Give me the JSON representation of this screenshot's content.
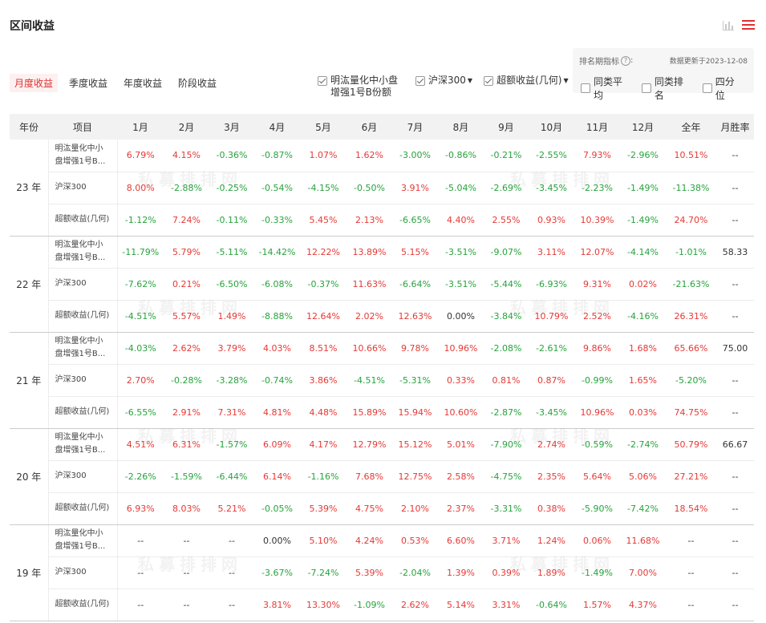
{
  "title": "区间收益",
  "icons": {
    "chart": "bar-chart-icon",
    "menu": "menu-icon"
  },
  "colors": {
    "accent": "#e03030",
    "positive": "#e53935",
    "negative": "#27a33d"
  },
  "tabs": [
    "月度收益",
    "季度收益",
    "年度收益",
    "阶段收益"
  ],
  "series": [
    {
      "label": "明汯量化中小盘增强1号B份额",
      "checked": true
    },
    {
      "label": "沪深300",
      "checked": true
    },
    {
      "label": "超额收益(几何)",
      "checked": true
    }
  ],
  "rank": {
    "label": "排名期指标",
    "help": "?",
    "date": "数据更新于2023-12-08",
    "options": [
      "同类平均",
      "同类排名",
      "四分位"
    ]
  },
  "watermark": "私募排排网",
  "table": {
    "headers": [
      "年份",
      "项目",
      "1月",
      "2月",
      "3月",
      "4月",
      "5月",
      "6月",
      "7月",
      "8月",
      "9月",
      "10月",
      "11月",
      "12月",
      "全年",
      "月胜率"
    ],
    "groups": [
      {
        "year": "23 年",
        "rows": [
          {
            "item": "明汯量化中小盘增强1号B...",
            "values": [
              "6.79%",
              "4.15%",
              "-0.36%",
              "-0.87%",
              "1.07%",
              "1.62%",
              "-3.00%",
              "-0.86%",
              "-0.21%",
              "-2.55%",
              "7.93%",
              "-2.96%",
              "10.51%",
              "--"
            ]
          },
          {
            "item": "沪深300",
            "values": [
              "8.00%",
              "-2.88%",
              "-0.25%",
              "-0.54%",
              "-4.15%",
              "-0.50%",
              "3.91%",
              "-5.04%",
              "-2.69%",
              "-3.45%",
              "-2.23%",
              "-1.49%",
              "-11.38%",
              "--"
            ]
          },
          {
            "item": "超额收益(几何)",
            "values": [
              "-1.12%",
              "7.24%",
              "-0.11%",
              "-0.33%",
              "5.45%",
              "2.13%",
              "-6.65%",
              "4.40%",
              "2.55%",
              "0.93%",
              "10.39%",
              "-1.49%",
              "24.70%",
              "--"
            ]
          }
        ]
      },
      {
        "year": "22 年",
        "rows": [
          {
            "item": "明汯量化中小盘增强1号B...",
            "values": [
              "-11.79%",
              "5.79%",
              "-5.11%",
              "-14.42%",
              "12.22%",
              "13.89%",
              "5.15%",
              "-3.51%",
              "-9.07%",
              "3.11%",
              "12.07%",
              "-4.14%",
              "-1.01%",
              "58.33"
            ]
          },
          {
            "item": "沪深300",
            "values": [
              "-7.62%",
              "0.21%",
              "-6.50%",
              "-6.08%",
              "-0.37%",
              "11.63%",
              "-6.64%",
              "-3.51%",
              "-5.44%",
              "-6.93%",
              "9.31%",
              "0.02%",
              "-21.63%",
              "--"
            ]
          },
          {
            "item": "超额收益(几何)",
            "values": [
              "-4.51%",
              "5.57%",
              "1.49%",
              "-8.88%",
              "12.64%",
              "2.02%",
              "12.63%",
              "0.00%",
              "-3.84%",
              "10.79%",
              "2.52%",
              "-4.16%",
              "26.31%",
              "--"
            ]
          }
        ]
      },
      {
        "year": "21 年",
        "rows": [
          {
            "item": "明汯量化中小盘增强1号B...",
            "values": [
              "-4.03%",
              "2.62%",
              "3.79%",
              "4.03%",
              "8.51%",
              "10.66%",
              "9.78%",
              "10.96%",
              "-2.08%",
              "-2.61%",
              "9.86%",
              "1.68%",
              "65.66%",
              "75.00"
            ]
          },
          {
            "item": "沪深300",
            "values": [
              "2.70%",
              "-0.28%",
              "-3.28%",
              "-0.74%",
              "3.86%",
              "-4.51%",
              "-5.31%",
              "0.33%",
              "0.81%",
              "0.87%",
              "-0.99%",
              "1.65%",
              "-5.20%",
              "--"
            ]
          },
          {
            "item": "超额收益(几何)",
            "values": [
              "-6.55%",
              "2.91%",
              "7.31%",
              "4.81%",
              "4.48%",
              "15.89%",
              "15.94%",
              "10.60%",
              "-2.87%",
              "-3.45%",
              "10.96%",
              "0.03%",
              "74.75%",
              "--"
            ]
          }
        ]
      },
      {
        "year": "20 年",
        "rows": [
          {
            "item": "明汯量化中小盘增强1号B...",
            "values": [
              "4.51%",
              "6.31%",
              "-1.57%",
              "6.09%",
              "4.17%",
              "12.79%",
              "15.12%",
              "5.01%",
              "-7.90%",
              "2.74%",
              "-0.59%",
              "-2.74%",
              "50.79%",
              "66.67"
            ]
          },
          {
            "item": "沪深300",
            "values": [
              "-2.26%",
              "-1.59%",
              "-6.44%",
              "6.14%",
              "-1.16%",
              "7.68%",
              "12.75%",
              "2.58%",
              "-4.75%",
              "2.35%",
              "5.64%",
              "5.06%",
              "27.21%",
              "--"
            ]
          },
          {
            "item": "超额收益(几何)",
            "values": [
              "6.93%",
              "8.03%",
              "5.21%",
              "-0.05%",
              "5.39%",
              "4.75%",
              "2.10%",
              "2.37%",
              "-3.31%",
              "0.38%",
              "-5.90%",
              "-7.42%",
              "18.54%",
              "--"
            ]
          }
        ]
      },
      {
        "year": "19 年",
        "rows": [
          {
            "item": "明汯量化中小盘增强1号B...",
            "values": [
              "--",
              "--",
              "--",
              "0.00%",
              "5.10%",
              "4.24%",
              "0.53%",
              "6.60%",
              "3.71%",
              "1.24%",
              "0.06%",
              "11.68%",
              "--",
              "--"
            ]
          },
          {
            "item": "沪深300",
            "values": [
              "--",
              "--",
              "--",
              "-3.67%",
              "-7.24%",
              "5.39%",
              "-2.04%",
              "1.39%",
              "0.39%",
              "1.89%",
              "-1.49%",
              "7.00%",
              "--",
              "--"
            ]
          },
          {
            "item": "超额收益(几何)",
            "values": [
              "--",
              "--",
              "--",
              "3.81%",
              "13.30%",
              "-1.09%",
              "2.62%",
              "5.14%",
              "3.31%",
              "-0.64%",
              "1.57%",
              "4.37%",
              "--",
              "--"
            ]
          }
        ]
      }
    ]
  }
}
